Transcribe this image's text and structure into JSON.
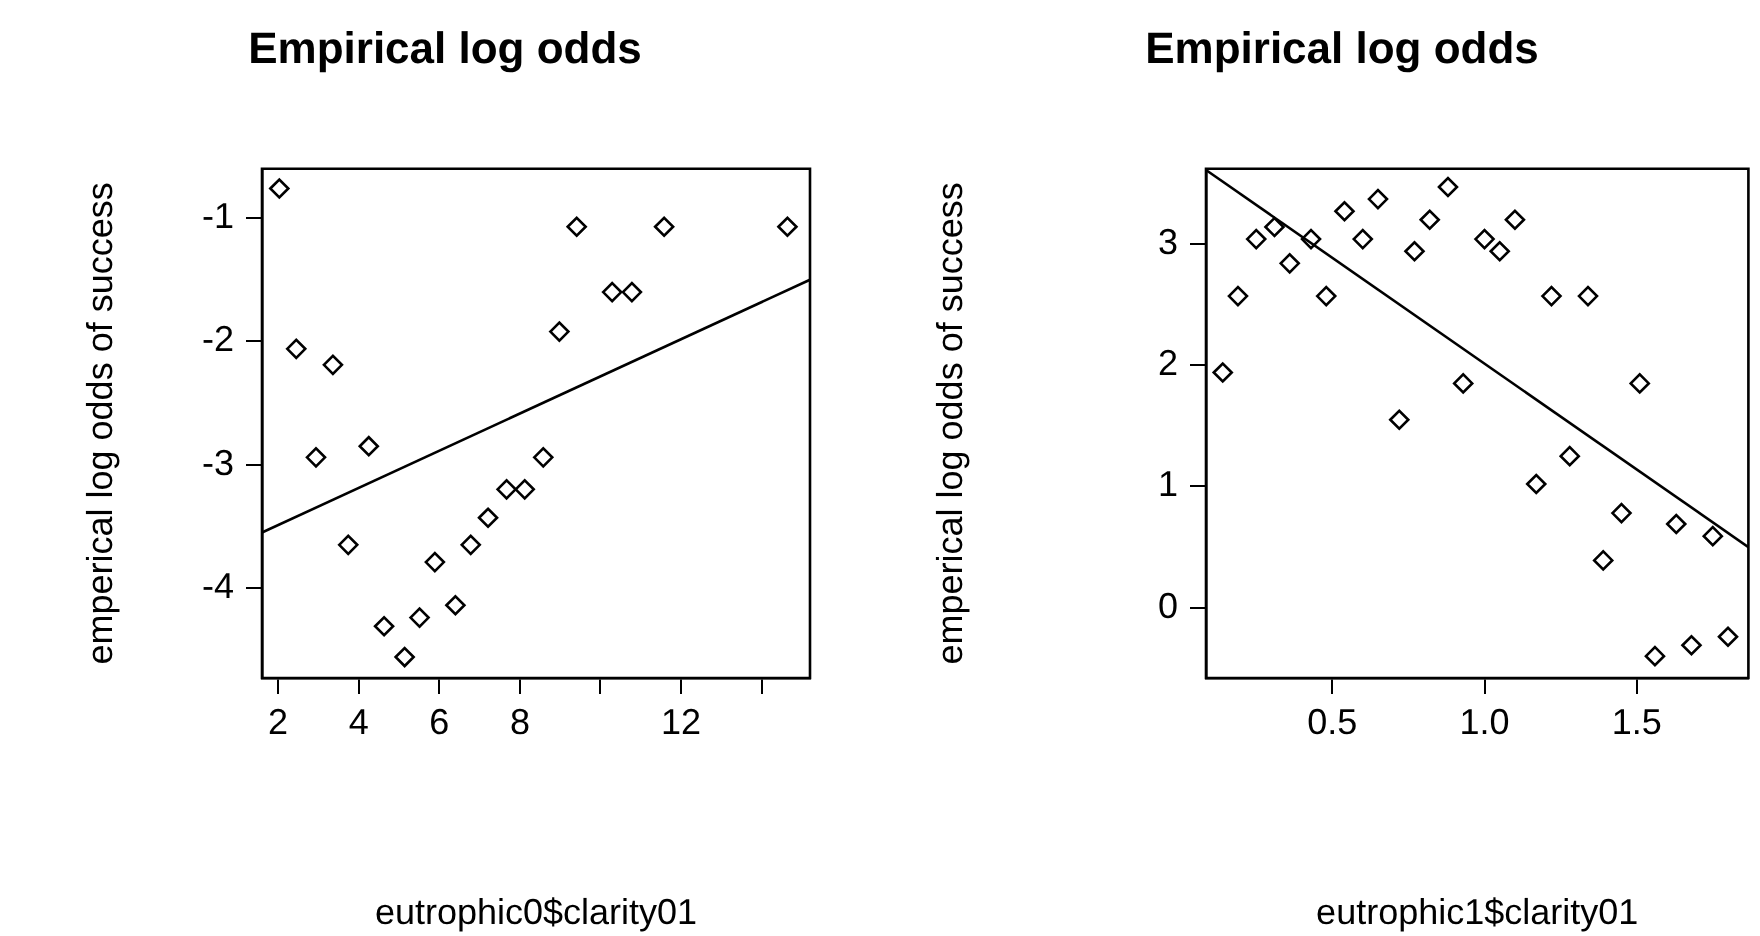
{
  "chart_data": [
    {
      "type": "scatter",
      "title": "Empirical log odds",
      "xlabel": "eutrophic0$clarity01",
      "ylabel": "emperical log odds of success",
      "xlim": [
        1.6,
        15.2
      ],
      "ylim": [
        -4.73,
        -0.6
      ],
      "xticks": [
        2,
        4,
        6,
        8,
        {
          "value": 10,
          "label": null
        },
        12,
        {
          "value": 14,
          "label": null
        }
      ],
      "yticks": [
        -4,
        -3,
        -2,
        -1
      ],
      "grid": false,
      "legend": false,
      "marker": "diamond",
      "series": [
        {
          "type": "scatter",
          "color": "#000000",
          "x": [
            2.03,
            2.45,
            3.36,
            2.94,
            4.25,
            3.74,
            4.63,
            5.14,
            5.51,
            6.4,
            5.89,
            6.78,
            7.21,
            7.67,
            8.12,
            8.58,
            8.98,
            9.41,
            10.29,
            10.78,
            11.58,
            14.64
          ],
          "values": [
            -0.76,
            -2.06,
            -2.19,
            -2.94,
            -2.85,
            -3.65,
            -4.31,
            -4.56,
            -4.24,
            -4.14,
            -3.79,
            -3.65,
            -3.43,
            -3.2,
            -3.2,
            -2.94,
            -1.92,
            -1.07,
            -1.6,
            -1.6,
            -1.07,
            -1.07
          ]
        },
        {
          "type": "line",
          "color": "#000000",
          "marker": "none",
          "x": [
            1.6,
            15.2
          ],
          "values": [
            -3.55,
            -1.5
          ]
        }
      ]
    },
    {
      "type": "scatter",
      "title": "Empirical log odds",
      "xlabel": "eutrophic1$clarity01",
      "ylabel": "emperical log odds of success",
      "xlim": [
        0.085,
        1.867
      ],
      "ylim": [
        -0.58,
        3.62
      ],
      "xticks": [
        0.5,
        {
          "value": 1,
          "label": "1.0"
        },
        1.5
      ],
      "yticks": [
        0,
        1,
        2,
        3
      ],
      "grid": false,
      "legend": false,
      "marker": "diamond",
      "series": [
        {
          "type": "scatter",
          "color": "#000000",
          "x": [
            0.14,
            0.19,
            0.25,
            0.31,
            0.36,
            0.43,
            0.48,
            0.54,
            0.6,
            0.65,
            0.72,
            0.77,
            0.82,
            0.88,
            0.93,
            1.0,
            1.05,
            1.1,
            1.17,
            1.22,
            1.28,
            1.34,
            1.39,
            1.45,
            1.51,
            1.56,
            1.63,
            1.68,
            1.75,
            1.8
          ],
          "values": [
            1.94,
            2.57,
            3.04,
            3.14,
            2.84,
            3.04,
            2.57,
            3.27,
            3.04,
            3.37,
            1.55,
            2.94,
            3.2,
            3.47,
            1.85,
            3.04,
            2.94,
            3.2,
            1.02,
            2.57,
            1.25,
            2.57,
            0.39,
            0.78,
            1.85,
            -0.4,
            0.69,
            -0.31,
            0.59,
            -0.24
          ]
        },
        {
          "type": "line",
          "color": "#000000",
          "marker": "none",
          "x": [
            0.085,
            1.867
          ],
          "values": [
            3.61,
            0.5
          ]
        }
      ]
    }
  ]
}
